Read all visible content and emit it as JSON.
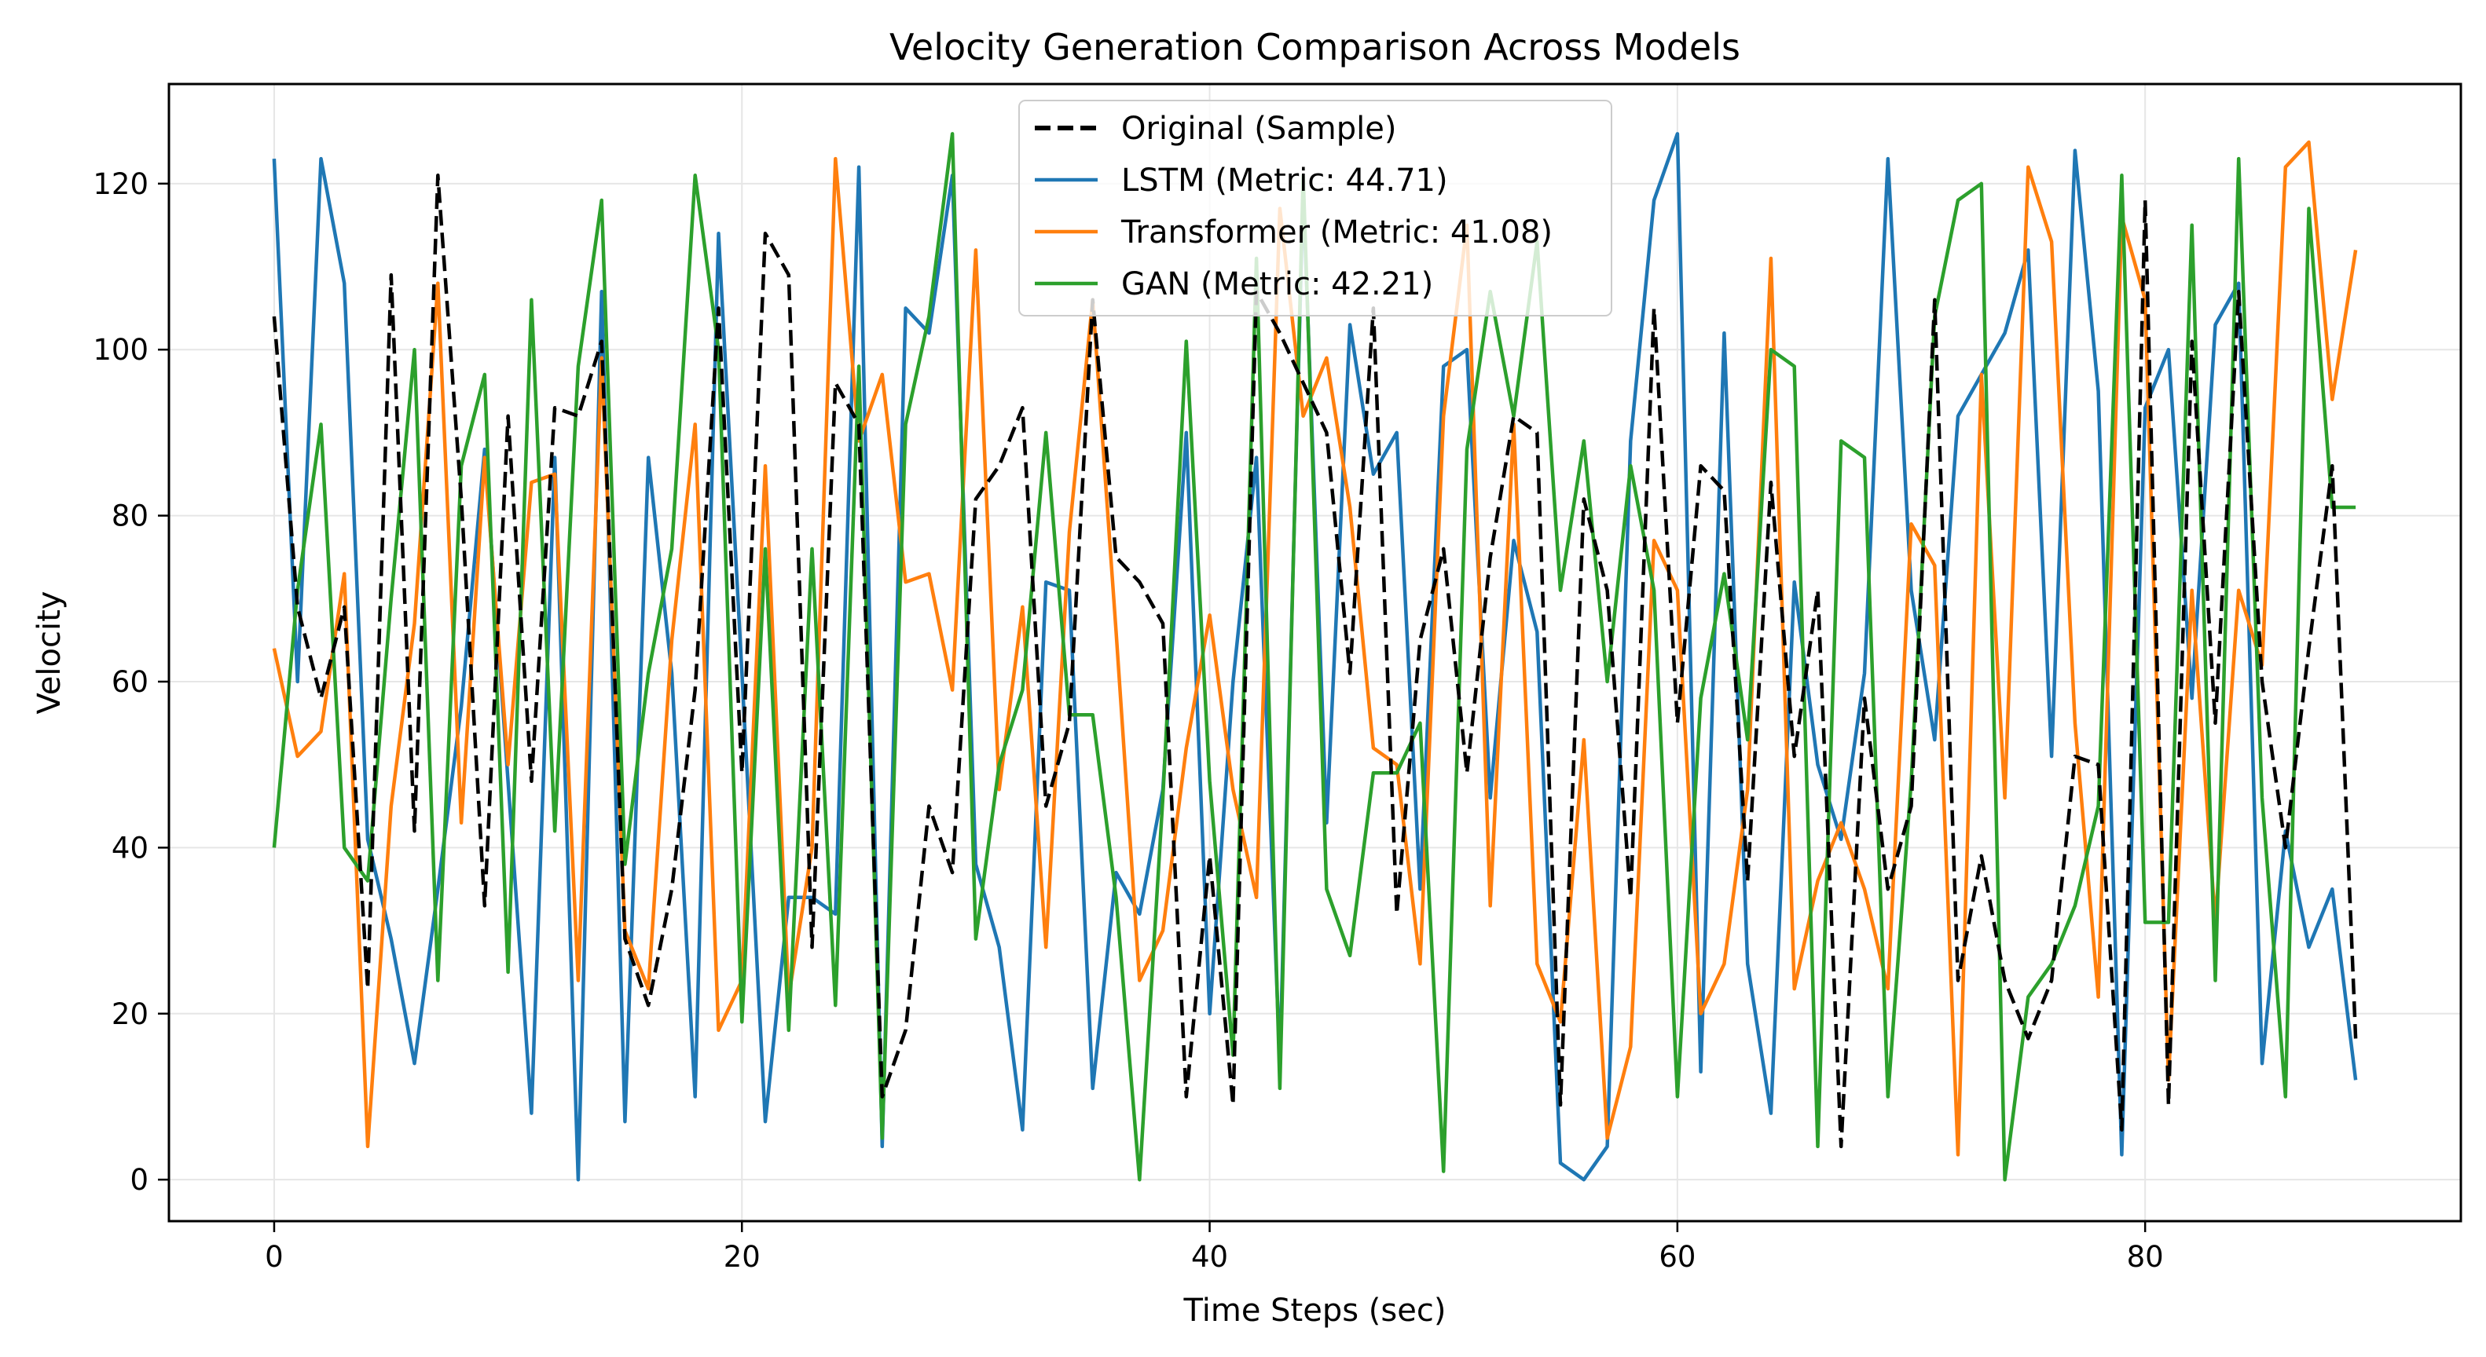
{
  "chart_data": {
    "type": "line",
    "title": "Velocity Generation Comparison Across Models",
    "xlabel": "Time Steps (sec)",
    "ylabel": "Velocity",
    "xlim": [
      -4.5,
      93.5
    ],
    "ylim": [
      -5,
      132
    ],
    "xticks": [
      0,
      20,
      40,
      60,
      80
    ],
    "yticks": [
      0,
      20,
      40,
      60,
      80,
      100,
      120
    ],
    "grid": true,
    "legend_position": "top-center",
    "series": [
      {
        "name": "Original (Sample)",
        "color": "#000000",
        "style": "dashed",
        "values": [
          104,
          69,
          58,
          69,
          23,
          109,
          42,
          121,
          82,
          33,
          92,
          48,
          93,
          92,
          101,
          29,
          21,
          35,
          59,
          105,
          49,
          114,
          109,
          28,
          96,
          91,
          10,
          18,
          45,
          37,
          82,
          86,
          93,
          45,
          55,
          106,
          75,
          72,
          67,
          10,
          39,
          9,
          107,
          102,
          96,
          90,
          61,
          105,
          32,
          65,
          76,
          49,
          75,
          92,
          90,
          9,
          82,
          71,
          34,
          105,
          55,
          86,
          83,
          36,
          84,
          51,
          71,
          4,
          58,
          35,
          45,
          106,
          24,
          39,
          24,
          17,
          24,
          51,
          50,
          6,
          118,
          9,
          101,
          55,
          107,
          60,
          40,
          64,
          86,
          17
        ]
      },
      {
        "name": "LSTM (Metric: 44.71)",
        "color": "#1f77b4",
        "style": "solid",
        "values": [
          123,
          60,
          123,
          108,
          41,
          29,
          14,
          35,
          57,
          88,
          48,
          8,
          87,
          0,
          107,
          7,
          87,
          61,
          10,
          114,
          61,
          7,
          34,
          34,
          32,
          122,
          4,
          105,
          102,
          121,
          38,
          28,
          6,
          72,
          71,
          11,
          37,
          32,
          47,
          90,
          20,
          60,
          87,
          14,
          119,
          43,
          103,
          85,
          90,
          35,
          98,
          100,
          46,
          77,
          66,
          2,
          0,
          4,
          89,
          118,
          126,
          13,
          102,
          26,
          8,
          72,
          50,
          41,
          61,
          123,
          71,
          53,
          92,
          97,
          102,
          112,
          51,
          124,
          95,
          3,
          93,
          100,
          58,
          103,
          108,
          14,
          42,
          28,
          35,
          12
        ]
      },
      {
        "name": "Transformer (Metric: 41.08)",
        "color": "#ff7f0e",
        "style": "solid",
        "values": [
          64,
          51,
          54,
          73,
          4,
          45,
          67,
          108,
          43,
          87,
          50,
          84,
          85,
          24,
          99,
          30,
          23,
          65,
          91,
          18,
          24,
          86,
          22,
          40,
          123,
          89,
          97,
          72,
          73,
          59,
          112,
          47,
          69,
          28,
          78,
          106,
          66,
          24,
          30,
          52,
          68,
          47,
          34,
          117,
          92,
          99,
          81,
          52,
          50,
          26,
          92,
          115,
          33,
          91,
          26,
          19,
          53,
          5,
          16,
          77,
          71,
          20,
          26,
          47,
          111,
          23,
          36,
          43,
          35,
          23,
          79,
          74,
          3,
          97,
          46,
          122,
          113,
          55,
          22,
          116,
          106,
          12,
          71,
          31,
          71,
          62,
          122,
          125,
          94,
          112
        ]
      },
      {
        "name": "GAN (Metric: 42.21)",
        "color": "#2ca02c",
        "style": "solid",
        "values": [
          40,
          71,
          91,
          40,
          36,
          70,
          100,
          24,
          86,
          97,
          25,
          106,
          42,
          98,
          118,
          38,
          61,
          76,
          121,
          100,
          19,
          76,
          18,
          76,
          21,
          98,
          5,
          91,
          104,
          126,
          29,
          50,
          59,
          90,
          56,
          56,
          34,
          0,
          46,
          101,
          48,
          15,
          111,
          11,
          121,
          35,
          27,
          49,
          49,
          55,
          1,
          88,
          107,
          92,
          113,
          71,
          89,
          60,
          86,
          71,
          10,
          58,
          73,
          53,
          100,
          98,
          4,
          89,
          87,
          10,
          48,
          104,
          118,
          120,
          0,
          22,
          26,
          33,
          45,
          121,
          31,
          31,
          115,
          24,
          123,
          46,
          10,
          117,
          81,
          81
        ]
      }
    ]
  }
}
